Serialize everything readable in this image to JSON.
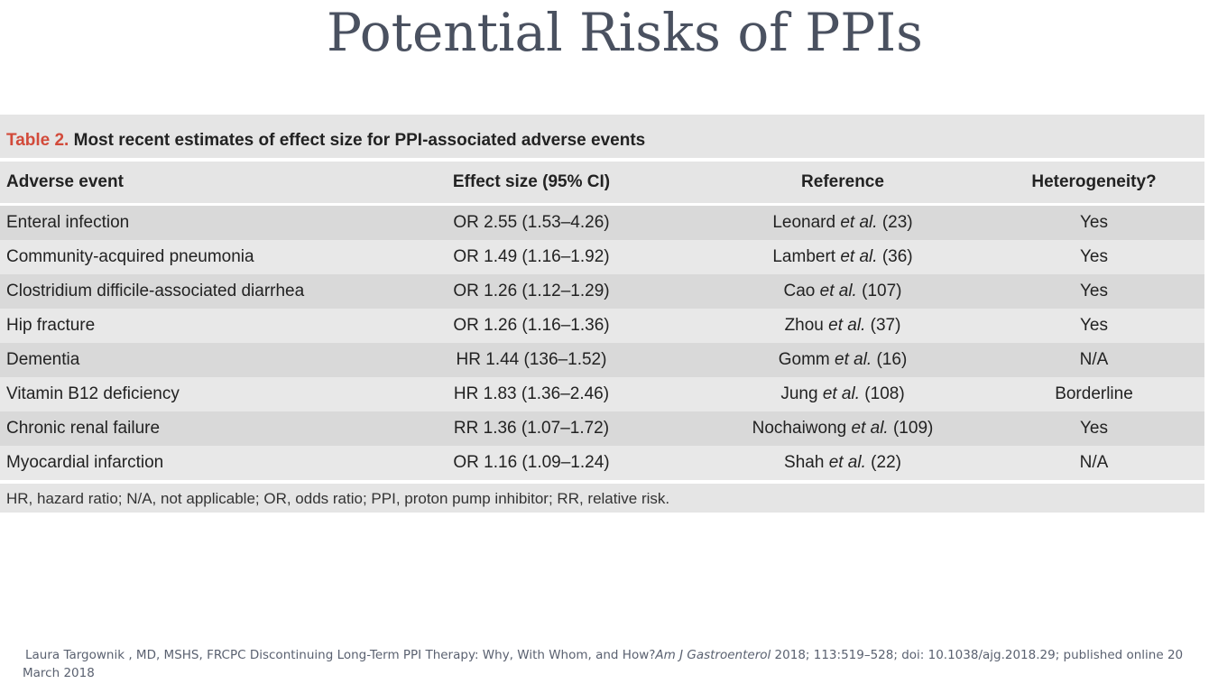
{
  "slide_title": "Potential Risks of PPIs",
  "table": {
    "caption_number": "Table 2.",
    "caption_text": "Most recent estimates of effect size for PPI-associated adverse events",
    "headers": [
      "Adverse event",
      "Effect size (95% CI)",
      "Reference",
      "Heterogeneity?"
    ],
    "rows": [
      {
        "event": "Enteral infection",
        "effect": "OR 2.55 (1.53–4.26)",
        "ref_author": "Leonard",
        "ref_etal": "et al.",
        "ref_num": "(23)",
        "heterogeneity": "Yes"
      },
      {
        "event": "Community-acquired pneumonia",
        "effect": "OR 1.49 (1.16–1.92)",
        "ref_author": "Lambert",
        "ref_etal": "et al.",
        "ref_num": "(36)",
        "heterogeneity": "Yes"
      },
      {
        "event": "Clostridium difficile-associated diarrhea",
        "effect": "OR 1.26 (1.12–1.29)",
        "ref_author": "Cao",
        "ref_etal": "et al.",
        "ref_num": "(107)",
        "heterogeneity": "Yes"
      },
      {
        "event": "Hip fracture",
        "effect": "OR 1.26 (1.16–1.36)",
        "ref_author": "Zhou",
        "ref_etal": "et al.",
        "ref_num": "(37)",
        "heterogeneity": "Yes"
      },
      {
        "event": "Dementia",
        "effect": "HR 1.44 (136–1.52)",
        "ref_author": "Gomm",
        "ref_etal": "et al.",
        "ref_num": "(16)",
        "heterogeneity": "N/A"
      },
      {
        "event": "Vitamin B12 deficiency",
        "effect": "HR 1.83 (1.36–2.46)",
        "ref_author": "Jung",
        "ref_etal": "et al.",
        "ref_num": "(108)",
        "heterogeneity": "Borderline"
      },
      {
        "event": "Chronic renal failure",
        "effect": "RR 1.36 (1.07–1.72)",
        "ref_author": "Nochaiwong",
        "ref_etal": "et al.",
        "ref_num": "(109)",
        "heterogeneity": "Yes"
      },
      {
        "event": "Myocardial infarction",
        "effect": "OR 1.16 (1.09–1.24)",
        "ref_author": "Shah",
        "ref_etal": "et al.",
        "ref_num": "(22)",
        "heterogeneity": "N/A"
      }
    ],
    "footnote": "HR, hazard ratio; N/A, not applicable; OR, odds ratio; PPI, proton pump inhibitor; RR, relative risk."
  },
  "citation": {
    "part1": "Laura Targownik , MD, MSHS, FRCPC Discontinuing Long-Term PPI Therapy: Why, With Whom, and How?",
    "journal": "Am J Gastroenterol",
    "part2": " 2018; 113:519–528; doi: 10.1038/ajg.2018.29; published online 20 March 2018"
  },
  "colors": {
    "title": "#4a5160",
    "caption_number": "#d24a3a",
    "row_dark": "#d9d9d9",
    "row_light": "#e8e8e8",
    "citation": "#5a6170"
  }
}
